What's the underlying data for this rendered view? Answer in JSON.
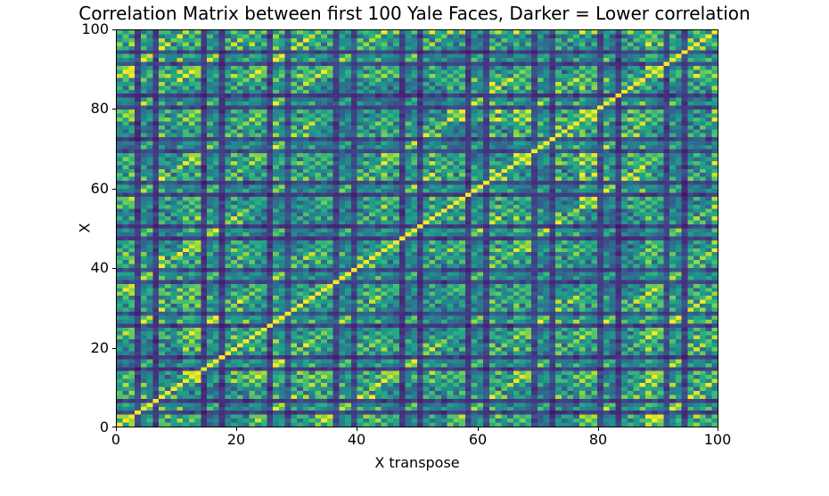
{
  "chart_data": {
    "type": "heatmap",
    "title": "Correlation Matrix between first 100 Yale Faces, Darker = Lower correlation",
    "xlabel": "X transpose",
    "ylabel": "X",
    "x_ticks": [
      "0",
      "20",
      "40",
      "60",
      "80",
      "100"
    ],
    "y_ticks": [
      "100",
      "80",
      "60",
      "40",
      "20",
      "0"
    ],
    "x_range": [
      0,
      100
    ],
    "y_range": [
      0,
      100
    ],
    "matrix_size": 100,
    "value_range": [
      0,
      1
    ],
    "colormap": "viridis",
    "colormap_stops": [
      "#440154",
      "#482475",
      "#414487",
      "#355f8d",
      "#2a788e",
      "#21918c",
      "#22a884",
      "#44bf70",
      "#7ad151",
      "#bddf26",
      "#fde725"
    ],
    "description": "100x100 symmetric correlation matrix of the first 100 Yale Faces images; repeating dark purple rows/columns about every 11 images (extreme-lighting face images) mark low correlation; greens/yellows mark high correlation; diagonal = 1.",
    "generation": {
      "seed": 42,
      "n": 100,
      "block_size": 11,
      "dark_positions": [
        3,
        6
      ],
      "dark_level": 0.28,
      "base": 0.08,
      "scale": 0.85,
      "noise": 0.12
    }
  }
}
